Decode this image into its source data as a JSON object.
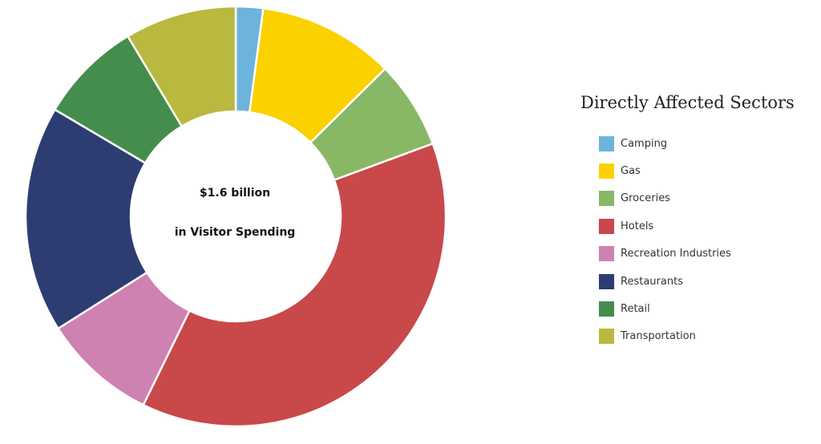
{
  "chart_data": {
    "type": "pie",
    "donut": true,
    "center_text": [
      "$1.6 billion",
      "in Visitor Spending"
    ],
    "legend_title": "Directly Affected Sectors",
    "legend_position": "right",
    "slices": [
      {
        "label": "Camping",
        "value": 2.2,
        "color": "#6cb4dc"
      },
      {
        "label": "Gas",
        "value": 11.0,
        "color": "#fbd100"
      },
      {
        "label": "Groceries",
        "value": 7.1,
        "color": "#88b865"
      },
      {
        "label": "Hotels",
        "value": 39.7,
        "color": "#c9484a"
      },
      {
        "label": "Recreation Industries",
        "value": 9.2,
        "color": "#ce82b1"
      },
      {
        "label": "Restaurants",
        "value": 18.3,
        "color": "#2e3d71"
      },
      {
        "label": "Retail",
        "value": 8.3,
        "color": "#458d4c"
      },
      {
        "label": "Transportation",
        "value": 9.0,
        "color": "#b9b83f"
      }
    ]
  }
}
